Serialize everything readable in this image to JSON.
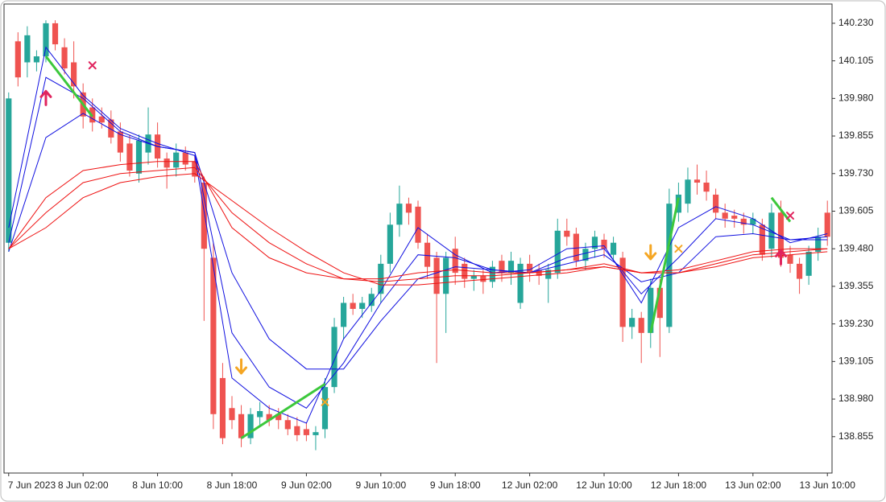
{
  "chart_data": {
    "type": "candlestick",
    "colors": {
      "up": "#26a69a",
      "down": "#ef5350",
      "zigzag": "#3cc83c",
      "buy": "#e0245e",
      "sell": "#f5a623",
      "exit_buy": "#e0245e",
      "exit_sell": "#f5a623"
    },
    "ylim": [
      138.734,
      140.294
    ],
    "xlim": [
      -0.5,
      88.5
    ],
    "yticks": [
      {
        "value": 140.23,
        "label": "140.230"
      },
      140.105,
      {
        "value": 139.98,
        "label": "139.980"
      },
      139.855,
      {
        "value": 139.73,
        "label": "139.730"
      },
      139.605,
      {
        "value": 139.48,
        "label": "139.480"
      },
      139.355,
      {
        "value": 139.23,
        "label": "139.230"
      },
      139.105,
      {
        "value": 138.98,
        "label": "138.980"
      },
      138.855
    ],
    "xticks": [
      {
        "value": 0,
        "label": "7 Jun 2023"
      },
      {
        "value": 8,
        "label": "8 Jun 02:00"
      },
      {
        "value": 16,
        "label": "8 Jun 10:00"
      },
      {
        "value": 24,
        "label": "8 Jun 18:00"
      },
      {
        "value": 32,
        "label": "9 Jun 02:00"
      },
      {
        "value": 40,
        "label": "9 Jun 10:00"
      },
      {
        "value": 48,
        "label": "9 Jun 18:00"
      },
      {
        "value": 56,
        "label": "12 Jun 02:00"
      },
      {
        "value": 64,
        "label": "12 Jun 10:00"
      },
      {
        "value": 72,
        "label": "12 Jun 18:00"
      },
      {
        "value": 80,
        "label": "13 Jun 02:00"
      },
      {
        "value": 88,
        "label": "13 Jun 10:00"
      }
    ],
    "open": [
      139.5,
      140.17,
      140.1,
      140.1,
      140.12,
      140.23,
      140.15,
      140.1,
      140.0,
      139.95,
      139.92,
      139.91,
      139.87,
      139.83,
      139.73,
      139.8,
      139.86,
      139.78,
      139.75,
      139.8,
      139.77,
      139.7,
      139.45,
      139.05,
      138.95,
      138.93,
      138.85,
      138.92,
      138.93,
      138.93,
      138.91,
      138.89,
      138.88,
      138.86,
      138.88,
      139.02,
      139.22,
      139.3,
      139.28,
      139.29,
      139.33,
      139.43,
      139.56,
      139.63,
      139.62,
      139.5,
      139.45,
      139.33,
      139.48,
      139.43,
      139.38,
      139.39,
      139.37,
      139.44,
      139.4,
      139.3,
      139.43,
      139.41,
      139.38,
      139.4,
      139.54,
      139.53,
      139.44,
      139.48,
      139.51,
      139.46,
      139.45,
      139.22,
      139.25,
      139.2,
      139.35,
      139.22,
      139.6,
      139.63,
      139.71,
      139.7,
      139.66,
      139.6,
      139.59,
      139.58,
      139.56,
      139.56,
      139.48,
      139.6,
      139.46,
      139.43,
      139.39,
      139.47,
      139.6
    ],
    "high": [
      140.0,
      140.2,
      140.22,
      140.14,
      140.24,
      140.24,
      140.18,
      140.17,
      140.03,
      139.98,
      139.95,
      139.94,
      139.9,
      139.86,
      139.86,
      139.95,
      139.9,
      139.8,
      139.83,
      139.82,
      139.79,
      139.72,
      139.5,
      139.1,
      138.99,
      138.96,
      138.95,
      138.97,
      138.96,
      138.95,
      138.93,
      138.92,
      138.9,
      138.89,
      139.05,
      139.25,
      139.32,
      139.33,
      139.32,
      139.35,
      139.46,
      139.6,
      139.69,
      139.65,
      139.64,
      139.53,
      139.47,
      139.47,
      139.52,
      139.45,
      139.41,
      139.41,
      139.44,
      139.46,
      139.47,
      139.45,
      139.46,
      139.43,
      139.43,
      139.58,
      139.58,
      139.55,
      139.5,
      139.54,
      139.53,
      139.52,
      139.47,
      139.28,
      139.27,
      139.38,
      139.38,
      139.68,
      139.7,
      139.75,
      139.76,
      139.74,
      139.68,
      139.63,
      139.61,
      139.6,
      139.6,
      139.58,
      139.63,
      139.64,
      139.49,
      139.45,
      139.49,
      139.55,
      139.64
    ],
    "low": [
      139.47,
      140.02,
      140.05,
      140.07,
      140.1,
      140.14,
      140.06,
      139.98,
      139.88,
      139.87,
      139.88,
      139.83,
      139.77,
      139.72,
      139.7,
      139.76,
      139.75,
      139.68,
      139.72,
      139.74,
      139.7,
      139.24,
      138.88,
      138.83,
      138.88,
      138.82,
      138.83,
      138.89,
      138.89,
      138.88,
      138.86,
      138.84,
      138.84,
      138.81,
      138.85,
      139.0,
      139.18,
      139.26,
      139.25,
      139.27,
      139.3,
      139.4,
      139.52,
      139.56,
      139.48,
      139.38,
      139.1,
      139.2,
      139.36,
      139.35,
      139.34,
      139.33,
      139.35,
      139.37,
      139.36,
      139.28,
      139.37,
      139.36,
      139.3,
      139.38,
      139.49,
      139.42,
      139.41,
      139.45,
      139.45,
      139.44,
      139.17,
      139.18,
      139.1,
      139.15,
      139.12,
      139.2,
      139.57,
      139.6,
      139.66,
      139.64,
      139.58,
      139.55,
      139.55,
      139.53,
      139.53,
      139.44,
      139.45,
      139.42,
      139.4,
      139.33,
      139.36,
      139.44,
      139.49
    ],
    "close": [
      139.98,
      140.05,
      140.19,
      140.12,
      140.23,
      140.16,
      140.08,
      140.02,
      139.92,
      139.9,
      139.9,
      139.85,
      139.8,
      139.74,
      139.84,
      139.86,
      139.78,
      139.75,
      139.8,
      139.76,
      139.72,
      139.48,
      138.93,
      138.85,
      138.91,
      138.85,
      138.93,
      138.94,
      138.91,
      138.91,
      138.88,
      138.86,
      138.86,
      138.87,
      139.02,
      139.22,
      139.3,
      139.28,
      139.3,
      139.33,
      139.43,
      139.56,
      139.63,
      139.6,
      139.5,
      139.42,
      139.33,
      139.45,
      139.4,
      139.38,
      139.39,
      139.37,
      139.42,
      139.4,
      139.44,
      139.43,
      139.4,
      139.39,
      139.41,
      139.54,
      139.52,
      139.44,
      139.48,
      139.52,
      139.48,
      139.5,
      139.22,
      139.25,
      139.2,
      139.35,
      139.25,
      139.63,
      139.66,
      139.71,
      139.7,
      139.67,
      139.6,
      139.58,
      139.58,
      139.56,
      139.58,
      139.46,
      139.6,
      139.45,
      139.43,
      139.38,
      139.47,
      139.52,
      139.52
    ],
    "ma_x": [
      0,
      4,
      8,
      12,
      16,
      20,
      24,
      28,
      32,
      36,
      40,
      44,
      48,
      52,
      56,
      60,
      64,
      68,
      72,
      76,
      80,
      84,
      88
    ],
    "lines": [
      {
        "color": "#1010e0",
        "values": [
          139.55,
          140.15,
          139.99,
          139.88,
          139.83,
          139.79,
          139.05,
          138.95,
          138.9,
          139.18,
          139.34,
          139.55,
          139.46,
          139.4,
          139.41,
          139.48,
          139.49,
          139.3,
          139.55,
          139.62,
          139.58,
          139.5,
          139.53
        ]
      },
      {
        "color": "#1010e0",
        "values": [
          139.5,
          140.05,
          139.98,
          139.87,
          139.82,
          139.8,
          139.2,
          139.02,
          138.95,
          139.1,
          139.3,
          139.46,
          139.45,
          139.41,
          139.4,
          139.45,
          139.48,
          139.33,
          139.45,
          139.58,
          139.56,
          139.51,
          139.52
        ]
      },
      {
        "color": "#1010e0",
        "values": [
          139.47,
          139.85,
          139.93,
          139.86,
          139.82,
          139.8,
          139.4,
          139.18,
          139.08,
          139.08,
          139.24,
          139.38,
          139.42,
          139.41,
          139.4,
          139.43,
          139.46,
          139.37,
          139.4,
          139.52,
          139.53,
          139.51,
          139.51
        ]
      },
      {
        "color": "#ee1111",
        "values": [
          139.48,
          139.65,
          139.74,
          139.76,
          139.77,
          139.77,
          139.55,
          139.45,
          139.4,
          139.38,
          139.38,
          139.4,
          139.41,
          139.4,
          139.4,
          139.41,
          139.43,
          139.4,
          139.41,
          139.44,
          139.47,
          139.48,
          139.48
        ]
      },
      {
        "color": "#ee1111",
        "values": [
          139.48,
          139.6,
          139.7,
          139.73,
          139.74,
          139.75,
          139.6,
          139.5,
          139.43,
          139.38,
          139.37,
          139.38,
          139.39,
          139.39,
          139.4,
          139.41,
          139.42,
          139.4,
          139.4,
          139.43,
          139.46,
          139.47,
          139.48
        ]
      },
      {
        "color": "#ee1111",
        "values": [
          139.48,
          139.55,
          139.65,
          139.7,
          139.72,
          139.73,
          139.64,
          139.55,
          139.47,
          139.4,
          139.36,
          139.36,
          139.37,
          139.38,
          139.39,
          139.4,
          139.42,
          139.4,
          139.4,
          139.42,
          139.45,
          139.46,
          139.47
        ]
      }
    ],
    "zigzag": [
      {
        "x": [
          4,
          9
        ],
        "values": [
          140.12,
          139.92
        ]
      },
      {
        "x": [
          25,
          34
        ],
        "values": [
          138.85,
          139.03
        ]
      },
      {
        "x": [
          69,
          72
        ],
        "values": [
          139.2,
          139.65
        ]
      },
      {
        "x": [
          82,
          84
        ],
        "values": [
          139.65,
          139.57
        ]
      }
    ],
    "signals": [
      {
        "kind": "buy",
        "x": 4,
        "y": 139.98
      },
      {
        "kind": "exit_buy",
        "x": 9,
        "y": 140.09
      },
      {
        "kind": "sell",
        "x": 25,
        "y": 139.09
      },
      {
        "kind": "exit_sell",
        "x": 34,
        "y": 138.97
      },
      {
        "kind": "sell",
        "x": 69,
        "y": 139.47
      },
      {
        "kind": "exit_sell",
        "x": 72,
        "y": 139.48
      },
      {
        "kind": "buy",
        "x": 83,
        "y": 139.45
      },
      {
        "kind": "exit_buy",
        "x": 84,
        "y": 139.59
      }
    ]
  }
}
